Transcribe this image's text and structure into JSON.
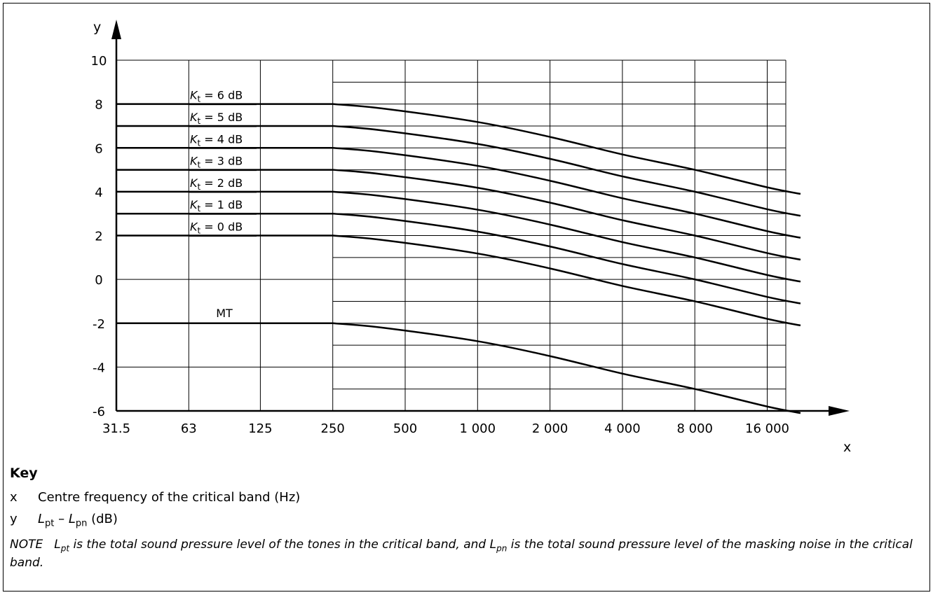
{
  "chart_data": {
    "type": "line",
    "x_axis": {
      "symbol": "x",
      "scale": "log2",
      "ticks": [
        31.5,
        63,
        125,
        250,
        500,
        1000,
        2000,
        4000,
        8000,
        16000
      ],
      "tick_labels": [
        "31.5",
        "63",
        "125",
        "250",
        "500",
        "1 000",
        "2 000",
        "4 000",
        "8 000",
        "16 000"
      ],
      "range": [
        31.5,
        22000
      ]
    },
    "y_axis": {
      "symbol": "y",
      "ticks": [
        10,
        8,
        6,
        4,
        2,
        0,
        -2,
        -4,
        -6
      ],
      "tick_labels": [
        "10",
        "8",
        "6",
        "4",
        "2",
        "0",
        "-2",
        "-4",
        "-6"
      ],
      "range": [
        -6,
        10
      ]
    },
    "grid": true,
    "series": [
      {
        "name": "Kt = 6 dB",
        "label_main": "K",
        "label_sub": "t",
        "label_rest": " = 6 dB",
        "x": [
          31.5,
          250,
          400,
          1000,
          2000,
          4000,
          8000,
          16000,
          22000
        ],
        "y": [
          8,
          8,
          7.8,
          7.18,
          6.5,
          5.7,
          5.0,
          4.2,
          3.9
        ]
      },
      {
        "name": "Kt = 5 dB",
        "label_main": "K",
        "label_sub": "t",
        "label_rest": " = 5 dB",
        "x": [
          31.5,
          250,
          400,
          1000,
          2000,
          4000,
          8000,
          16000,
          22000
        ],
        "y": [
          7,
          7,
          6.8,
          6.18,
          5.5,
          4.7,
          4.0,
          3.2,
          2.9
        ]
      },
      {
        "name": "Kt = 4 dB",
        "label_main": "K",
        "label_sub": "t",
        "label_rest": " = 4 dB",
        "x": [
          31.5,
          250,
          400,
          1000,
          2000,
          4000,
          8000,
          16000,
          22000
        ],
        "y": [
          6,
          6,
          5.8,
          5.18,
          4.5,
          3.7,
          3.0,
          2.2,
          1.9
        ]
      },
      {
        "name": "Kt = 3 dB",
        "label_main": "K",
        "label_sub": "t",
        "label_rest": " = 3 dB",
        "x": [
          31.5,
          250,
          400,
          1000,
          2000,
          4000,
          8000,
          16000,
          22000
        ],
        "y": [
          5,
          5,
          4.8,
          4.18,
          3.5,
          2.7,
          2.0,
          1.2,
          0.9
        ]
      },
      {
        "name": "Kt = 2 dB",
        "label_main": "K",
        "label_sub": "t",
        "label_rest": " = 2 dB",
        "x": [
          31.5,
          250,
          400,
          1000,
          2000,
          4000,
          8000,
          16000,
          22000
        ],
        "y": [
          4,
          4,
          3.8,
          3.18,
          2.5,
          1.7,
          1.0,
          0.2,
          -0.1
        ]
      },
      {
        "name": "Kt = 1 dB",
        "label_main": "K",
        "label_sub": "t",
        "label_rest": " = 1 dB",
        "x": [
          31.5,
          250,
          400,
          1000,
          2000,
          4000,
          8000,
          16000,
          22000
        ],
        "y": [
          3,
          3,
          2.8,
          2.18,
          1.5,
          0.7,
          0.0,
          -0.8,
          -1.1
        ]
      },
      {
        "name": "Kt = 0 dB",
        "label_main": "K",
        "label_sub": "t",
        "label_rest": " = 0 dB",
        "x": [
          31.5,
          250,
          400,
          1000,
          2000,
          4000,
          8000,
          16000,
          22000
        ],
        "y": [
          2,
          2,
          1.8,
          1.18,
          0.5,
          -0.3,
          -1.0,
          -1.8,
          -2.1
        ]
      },
      {
        "name": "MT",
        "label_main": "MT",
        "label_sub": "",
        "label_rest": "",
        "x": [
          31.5,
          250,
          400,
          1000,
          2000,
          4000,
          8000,
          16000,
          22000
        ],
        "y": [
          -2,
          -2,
          -2.2,
          -2.82,
          -3.5,
          -4.3,
          -5.0,
          -5.8,
          -6.1
        ]
      }
    ]
  },
  "key": {
    "title": "Key",
    "x_symbol": "x",
    "x_desc": "Centre frequency of the critical band (Hz)",
    "y_symbol": "y",
    "y_L1": "L",
    "y_L1_sub": "pt",
    "y_minus": " – ",
    "y_L2": "L",
    "y_L2_sub": "pn",
    "y_unit": " (dB)"
  },
  "note": {
    "label": "NOTE",
    "p1_L": "L",
    "p1_sub": "pt",
    "p1_text": " is the total sound pressure level of the tones in the critical band, and ",
    "p2_L": "L",
    "p2_sub": "pn",
    "p2_text": " is the total sound pressure level of the masking noise in the critical band."
  }
}
